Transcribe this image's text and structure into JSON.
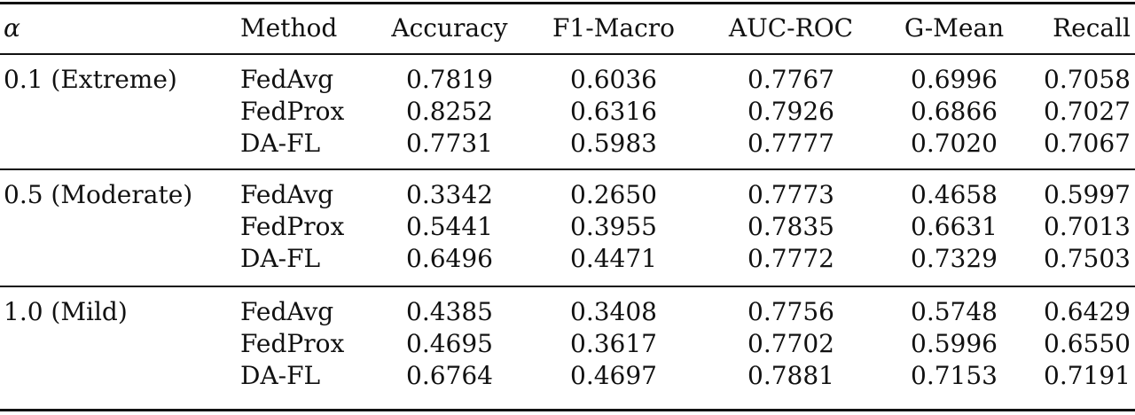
{
  "table": {
    "headers": [
      "α",
      "Method",
      "Accuracy",
      "F1-Macro",
      "AUC-ROC",
      "G-Mean",
      "Recall"
    ],
    "groups": [
      {
        "alpha": "0.1 (Extreme)",
        "rows": [
          {
            "method": "FedAvg",
            "accuracy": "0.7819",
            "f1_macro": "0.6036",
            "auc_roc": "0.7767",
            "g_mean": "0.6996",
            "recall": "0.7058"
          },
          {
            "method": "FedProx",
            "accuracy": "0.8252",
            "f1_macro": "0.6316",
            "auc_roc": "0.7926",
            "g_mean": "0.6866",
            "recall": "0.7027"
          },
          {
            "method": "DA-FL",
            "accuracy": "0.7731",
            "f1_macro": "0.5983",
            "auc_roc": "0.7777",
            "g_mean": "0.7020",
            "recall": "0.7067"
          }
        ]
      },
      {
        "alpha": "0.5 (Moderate)",
        "rows": [
          {
            "method": "FedAvg",
            "accuracy": "0.3342",
            "f1_macro": "0.2650",
            "auc_roc": "0.7773",
            "g_mean": "0.4658",
            "recall": "0.5997"
          },
          {
            "method": "FedProx",
            "accuracy": "0.5441",
            "f1_macro": "0.3955",
            "auc_roc": "0.7835",
            "g_mean": "0.6631",
            "recall": "0.7013"
          },
          {
            "method": "DA-FL",
            "accuracy": "0.6496",
            "f1_macro": "0.4471",
            "auc_roc": "0.7772",
            "g_mean": "0.7329",
            "recall": "0.7503"
          }
        ]
      },
      {
        "alpha": "1.0 (Mild)",
        "rows": [
          {
            "method": "FedAvg",
            "accuracy": "0.4385",
            "f1_macro": "0.3408",
            "auc_roc": "0.7756",
            "g_mean": "0.5748",
            "recall": "0.6429"
          },
          {
            "method": "FedProx",
            "accuracy": "0.4695",
            "f1_macro": "0.3617",
            "auc_roc": "0.7702",
            "g_mean": "0.5996",
            "recall": "0.6550"
          },
          {
            "method": "DA-FL",
            "accuracy": "0.6764",
            "f1_macro": "0.4697",
            "auc_roc": "0.7881",
            "g_mean": "0.7153",
            "recall": "0.7191"
          }
        ]
      }
    ]
  }
}
